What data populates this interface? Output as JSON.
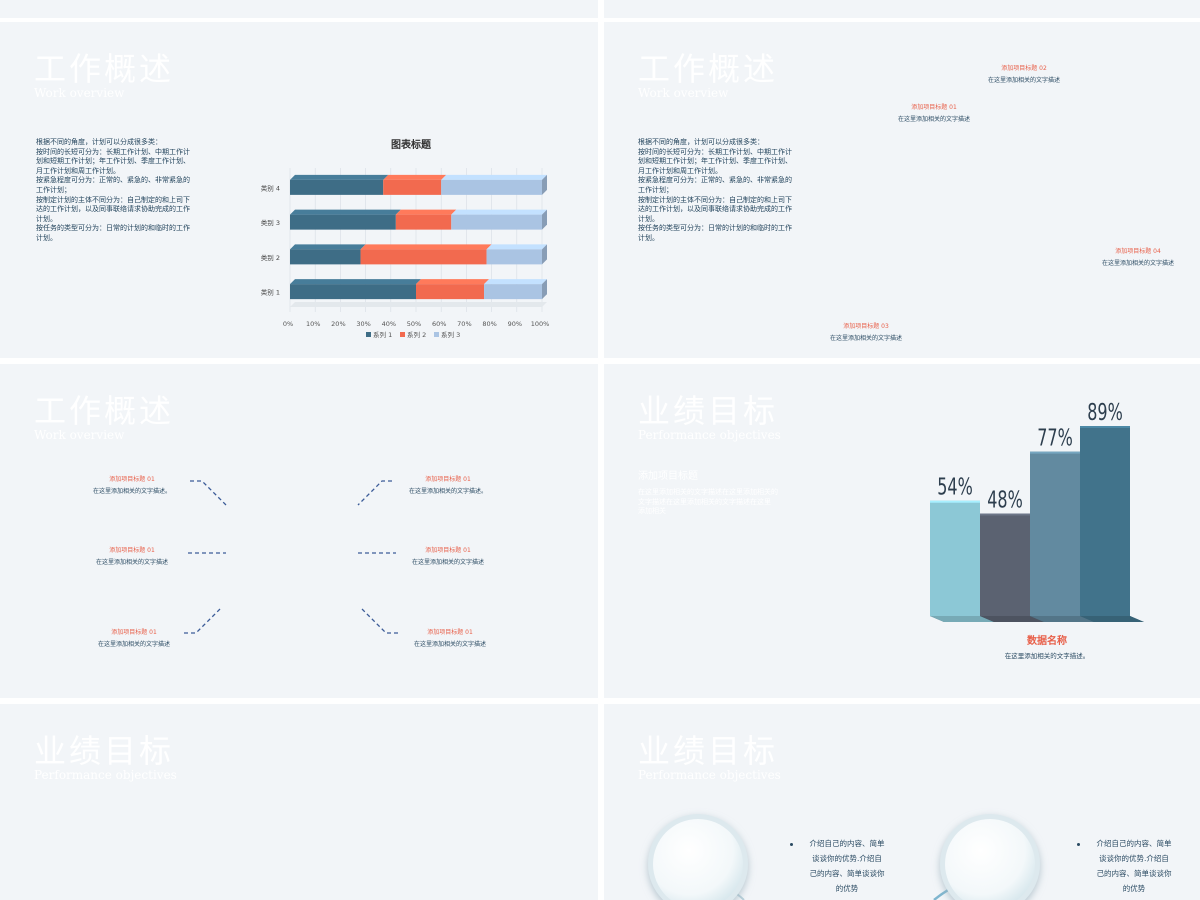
{
  "slides": {
    "s2": {
      "title": "工作概述",
      "subtitle": "Work overview",
      "paragraph": "根据不同的角度，计划可以分成很多类：\n按时间的长短可分为：长期工作计划、中期工作计\n划和短期工作计划；年工作计划、季度工作计划、\n月工作计划和周工作计划。\n按紧急程度可分为：正常的、紧急的、非常紧急的\n工作计划；\n按制定计划的主体不同分为：自己制定的和上司下\n达的工作计划，以及同事联络请求协助完成的工作\n计划。\n按任务的类型可分为：日常的计划的和临时的工作\n计划。"
    },
    "s3": {
      "title": "工作概述",
      "subtitle": "Work overview",
      "paragraph": "根据不同的角度，计划可以分成很多类：\n按时间的长短可分为：长期工作计划、中期工作计\n划和短期工作计划；年工作计划、季度工作计划、\n月工作计划和周工作计划。\n按紧急程度可分为：正常的、紧急的、非常紧急的\n工作计划；\n按制定计划的主体不同分为：自己制定的和上司下\n达的工作计划，以及同事联络请求协助完成的工作\n计划。\n按任务的类型可分为：日常的计划的和临时的工作\n计划。",
      "labels": [
        {
          "title": "添加项目标题 02",
          "desc": "在这里添加相关的文字描述"
        },
        {
          "title": "添加项目标题 01",
          "desc": "在这里添加相关的文字描述"
        },
        {
          "title": "添加项目标题 04",
          "desc": "在这里添加相关的文字描述"
        },
        {
          "title": "添加项目标题 03",
          "desc": "在这里添加相关的文字描述"
        }
      ]
    },
    "s4": {
      "title": "工作概述",
      "subtitle": "Work overview",
      "labels": [
        {
          "title": "添加项目标题 01",
          "desc": "在这里添加相关的文字描述。"
        },
        {
          "title": "添加项目标题 01",
          "desc": "在这里添加相关的文字描述。"
        },
        {
          "title": "添加项目标题 01",
          "desc": "在这里添加相关的文字描述"
        },
        {
          "title": "添加项目标题 01",
          "desc": "在这里添加相关的文字描述"
        },
        {
          "title": "添加项目标题 01",
          "desc": "在这里添加相关的文字描述"
        },
        {
          "title": "添加项目标题 01",
          "desc": "在这里添加相关的文字描述"
        }
      ]
    },
    "s5": {
      "title": "业绩目标",
      "subtitle": "Performance objectives",
      "heading": "添加项目标题",
      "paragraph": "在这里添加相关的文字描述在这里添加相关的\n文字描述在这里添加相关的文字描述在这里\n添加相关",
      "data_name": "数据名称",
      "data_desc": "在这里添加相关的文字描述。"
    },
    "s6": {
      "title": "业绩目标",
      "subtitle": "Performance objectives"
    },
    "s7": {
      "title": "业绩目标",
      "subtitle": "Performance objectives",
      "bullets": [
        "介绍自己的内容、简单\n谈谈你的优势.介绍自\n己的内容、简单谈谈你\n的优势",
        "介绍自己的内容、简单\n谈谈你的优势.介绍自\n己的内容、简单谈谈你\n的优势"
      ]
    }
  },
  "chart_data": [
    {
      "type": "bar",
      "orientation": "horizontal",
      "stacked": "percent",
      "title": "图表标题",
      "categories": [
        "类别 1",
        "类别 2",
        "类别 3",
        "类别 4"
      ],
      "series": [
        {
          "name": "系列 1",
          "values": [
            50,
            28,
            42,
            37
          ],
          "color": "#3e6d86"
        },
        {
          "name": "系列 2",
          "values": [
            27,
            50,
            22,
            23
          ],
          "color": "#f26a4f"
        },
        {
          "name": "系列 3",
          "values": [
            23,
            22,
            36,
            40
          ],
          "color": "#aac4e3"
        }
      ],
      "xlim": [
        0,
        100
      ],
      "xticks": [
        "0%",
        "10%",
        "20%",
        "30%",
        "40%",
        "50%",
        "60%",
        "70%",
        "80%",
        "90%",
        "100%"
      ],
      "legend": "bottom",
      "grid": true
    },
    {
      "type": "bar",
      "categories": [
        "",
        "",
        "",
        ""
      ],
      "values": [
        54,
        48,
        77,
        89
      ],
      "labels": [
        "54%",
        "48%",
        "77%",
        "89%"
      ],
      "colors": [
        "#8cc8d6",
        "#5b6271",
        "#628aa0",
        "#41738b"
      ]
    }
  ]
}
